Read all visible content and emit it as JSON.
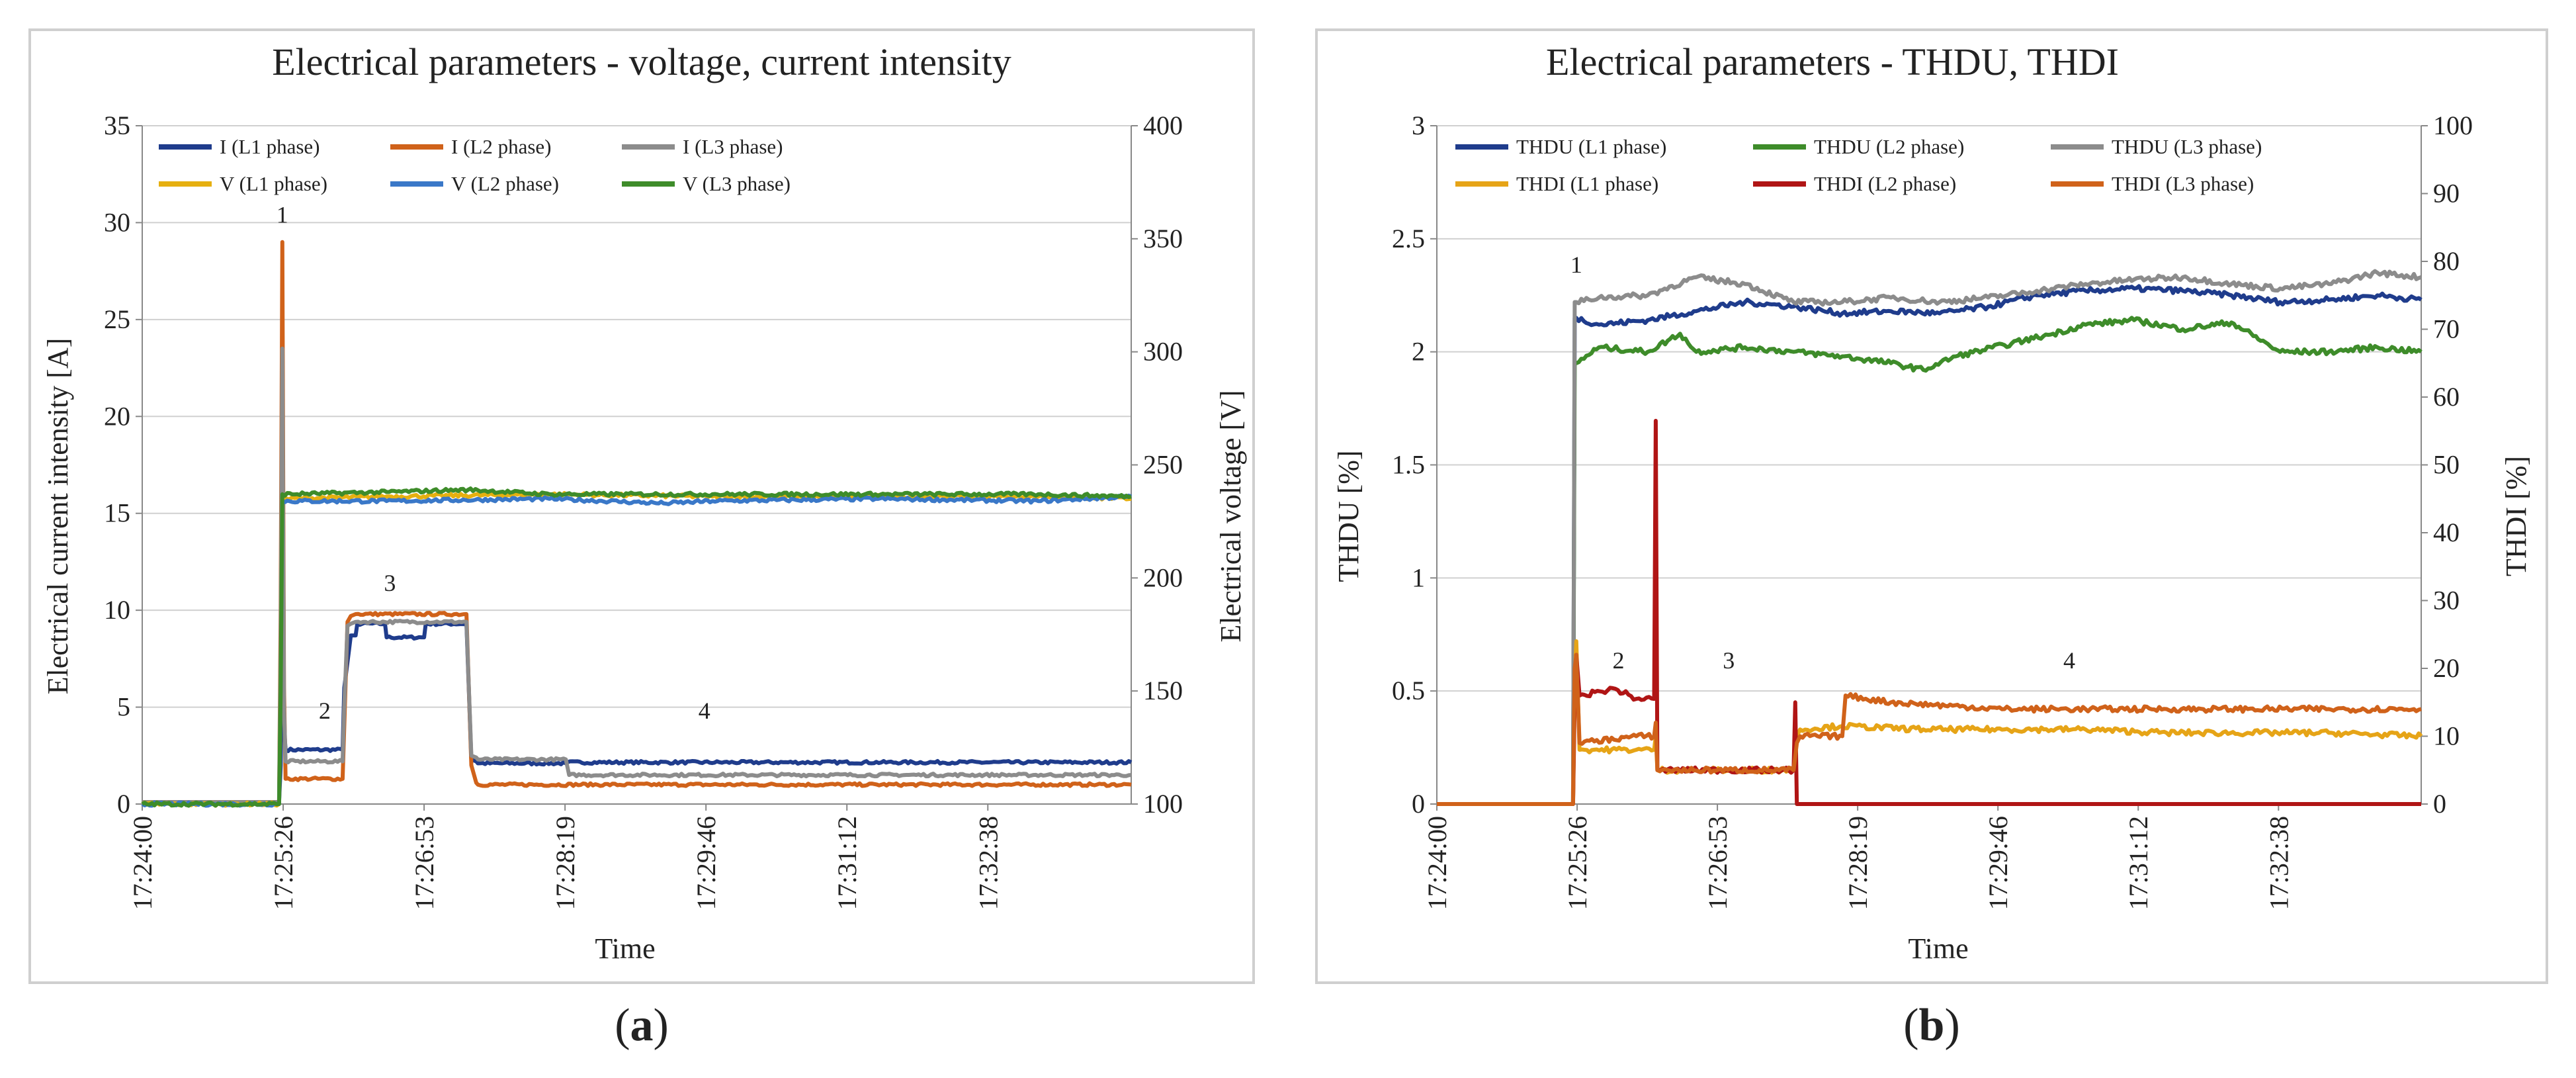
{
  "chart_data": [
    {
      "type": "line",
      "panel": "a",
      "title": "Electrical parameters - voltage, current intensity",
      "xlabel": "Time",
      "ylabel": "Electrical current intensity [A]",
      "y2label": "Electrical voltage [V]",
      "x_ticks": [
        "17:24:00",
        "17:25:26",
        "17:26:53",
        "17:28:19",
        "17:29:46",
        "17:31:12",
        "17:32:38"
      ],
      "y_ticks": [
        0,
        5,
        10,
        15,
        20,
        25,
        30,
        35
      ],
      "y2_ticks": [
        100,
        150,
        200,
        250,
        300,
        350,
        400
      ],
      "ylim": [
        0,
        35
      ],
      "y2lim": [
        100,
        400
      ],
      "xlim_seconds": [
        0,
        607
      ],
      "grid": true,
      "legend_position": "top-left",
      "annotations": [
        {
          "label": "1",
          "x": 86,
          "y": 30
        },
        {
          "label": "2",
          "x": 112,
          "y": 4.4
        },
        {
          "label": "3",
          "x": 152,
          "y": 11
        },
        {
          "label": "4",
          "x": 345,
          "y": 4.4
        }
      ],
      "series": [
        {
          "name": "I  (L1 phase)",
          "axis": "left",
          "color": "#1f3c8c",
          "x": [
            0,
            84,
            85,
            86,
            87,
            88,
            123,
            124,
            127,
            128,
            131,
            132,
            149,
            150,
            173,
            174,
            199,
            202,
            205,
            206,
            260,
            261,
            607
          ],
          "y": [
            0.1,
            0.1,
            2,
            10,
            4,
            2.8,
            2.8,
            6,
            8,
            8.7,
            8.7,
            9.3,
            9.3,
            8.6,
            8.6,
            9.3,
            9.3,
            2.3,
            2.2,
            2.1,
            2.1,
            2.15,
            2.15
          ]
        },
        {
          "name": "I  (L2 phase)",
          "axis": "left",
          "color": "#d0621a",
          "x": [
            0,
            84,
            85,
            86,
            87,
            88,
            123,
            124,
            126,
            128,
            131,
            199,
            202,
            205,
            206,
            607
          ],
          "y": [
            0.1,
            0.1,
            10,
            29,
            6,
            1.3,
            1.3,
            4,
            9.4,
            9.7,
            9.8,
            9.8,
            2,
            1.1,
            1.0,
            1.0
          ]
        },
        {
          "name": "I  (L3 phase)",
          "axis": "left",
          "color": "#8c8c8c",
          "x": [
            0,
            84,
            85,
            86,
            87,
            88,
            123,
            124,
            126,
            128,
            131,
            199,
            202,
            205,
            206,
            260,
            262,
            607
          ],
          "y": [
            0.1,
            0.1,
            8,
            23.5,
            5,
            2.2,
            2.2,
            5,
            9.2,
            9.3,
            9.4,
            9.4,
            2.5,
            2.4,
            2.3,
            2.3,
            1.5,
            1.5
          ]
        },
        {
          "name": "V (L1 phase)",
          "axis": "right",
          "color": "#e6b010",
          "x": [
            0,
            84,
            85,
            86,
            150,
            250,
            350,
            450,
            550,
            607
          ],
          "y": [
            100,
            100,
            150,
            235,
            236,
            237,
            236,
            236,
            236,
            235
          ]
        },
        {
          "name": "V (L2 phase)",
          "axis": "right",
          "color": "#3a78c8",
          "x": [
            0,
            84,
            85,
            86,
            150,
            250,
            320,
            350,
            450,
            550,
            607
          ],
          "y": [
            100,
            100,
            150,
            234,
            234,
            235,
            233,
            234,
            235,
            234,
            236
          ]
        },
        {
          "name": "V (L3 phase)",
          "axis": "right",
          "color": "#3e8c2a",
          "x": [
            0,
            84,
            85,
            86,
            150,
            200,
            250,
            350,
            450,
            550,
            607
          ],
          "y": [
            100,
            100,
            150,
            237,
            238,
            239,
            237,
            237,
            237,
            237,
            236
          ]
        }
      ]
    },
    {
      "type": "line",
      "panel": "b",
      "title": "Electrical parameters - THDU, THDI",
      "xlabel": "Time",
      "ylabel": "THDU [%]",
      "y2label": "THDI [%]",
      "x_ticks": [
        "17:24:00",
        "17:25:26",
        "17:26:53",
        "17:28:19",
        "17:29:46",
        "17:31:12",
        "17:32:38"
      ],
      "y_ticks": [
        0,
        0.5,
        1,
        1.5,
        2,
        2.5,
        3
      ],
      "y2_ticks": [
        0,
        10,
        20,
        30,
        40,
        50,
        60,
        70,
        80,
        90,
        100
      ],
      "ylim": [
        0,
        3
      ],
      "y2lim": [
        0,
        100
      ],
      "xlim_seconds": [
        0,
        607
      ],
      "grid": true,
      "legend_position": "top-left",
      "annotations": [
        {
          "label": "1",
          "x": 86,
          "y": 2.35
        },
        {
          "label": "2",
          "x": 112,
          "y": 0.6
        },
        {
          "label": "3",
          "x": 180,
          "y": 0.6
        },
        {
          "label": "4",
          "x": 390,
          "y": 0.6
        }
      ],
      "series": [
        {
          "name": "THDU (L1 phase)",
          "axis": "left",
          "color": "#1f3c8c",
          "x": [
            0,
            84,
            85,
            86,
            100,
            130,
            160,
            190,
            220,
            250,
            280,
            310,
            340,
            370,
            400,
            430,
            460,
            490,
            520,
            550,
            580,
            607
          ],
          "y": [
            0,
            0,
            2.15,
            2.15,
            2.12,
            2.14,
            2.18,
            2.22,
            2.2,
            2.17,
            2.18,
            2.17,
            2.2,
            2.25,
            2.27,
            2.28,
            2.27,
            2.25,
            2.22,
            2.23,
            2.25,
            2.23
          ]
        },
        {
          "name": "THDU  (L2 phase)",
          "axis": "left",
          "color": "#3e8c2a",
          "x": [
            0,
            84,
            85,
            86,
            100,
            130,
            150,
            160,
            190,
            220,
            250,
            280,
            300,
            320,
            350,
            380,
            400,
            430,
            460,
            490,
            520,
            550,
            580,
            607
          ],
          "y": [
            0,
            0,
            1.95,
            1.95,
            2.02,
            2.0,
            2.08,
            2.0,
            2.02,
            2.0,
            1.98,
            1.95,
            1.92,
            1.98,
            2.03,
            2.08,
            2.12,
            2.14,
            2.1,
            2.13,
            2.0,
            2.0,
            2.02,
            2.0
          ]
        },
        {
          "name": "THDU  (L3 phase)",
          "axis": "left",
          "color": "#8c8c8c",
          "x": [
            0,
            84,
            85,
            86,
            100,
            130,
            160,
            190,
            220,
            250,
            280,
            310,
            340,
            370,
            400,
            430,
            460,
            490,
            520,
            550,
            580,
            607
          ],
          "y": [
            0,
            0,
            2.22,
            2.22,
            2.24,
            2.25,
            2.33,
            2.3,
            2.22,
            2.22,
            2.24,
            2.22,
            2.24,
            2.27,
            2.3,
            2.32,
            2.33,
            2.3,
            2.28,
            2.3,
            2.35,
            2.33
          ]
        },
        {
          "name": "THDI (L1 phase)",
          "axis": "right",
          "color": "#e6a417",
          "x": [
            0,
            84,
            85,
            86,
            88,
            123,
            134,
            135,
            136,
            220,
            222,
            224,
            250,
            300,
            350,
            400,
            450,
            500,
            550,
            607
          ],
          "y": [
            0,
            0,
            18,
            24,
            8,
            8,
            8,
            10,
            5,
            5,
            10,
            11,
            11.5,
            11,
            11,
            11,
            10.5,
            10.5,
            10.5,
            10
          ]
        },
        {
          "name": "THDI (L2 phase)",
          "axis": "right",
          "color": "#b01515",
          "x": [
            0,
            84,
            85,
            86,
            88,
            110,
            123,
            134,
            135,
            136,
            138,
            220,
            221,
            222,
            223,
            607
          ],
          "y": [
            0,
            0,
            15,
            22,
            16,
            17,
            15.5,
            15.5,
            56.5,
            5,
            5,
            5,
            15,
            0,
            0,
            0
          ]
        },
        {
          "name": "THDI (L3 phase)",
          "axis": "right",
          "color": "#d0621a",
          "x": [
            0,
            84,
            85,
            86,
            88,
            123,
            134,
            135,
            136,
            220,
            222,
            224,
            250,
            252,
            280,
            350,
            400,
            450,
            500,
            550,
            607
          ],
          "y": [
            0,
            0,
            20,
            22,
            9,
            10,
            10,
            12,
            5,
            5,
            9,
            10,
            10,
            16,
            15,
            14,
            14,
            14,
            14,
            14,
            14
          ]
        }
      ]
    }
  ],
  "panel_labels": {
    "a_open": "(",
    "a_letter": "a",
    "a_close": ")",
    "b_open": "(",
    "b_letter": "b",
    "b_close": ")"
  }
}
